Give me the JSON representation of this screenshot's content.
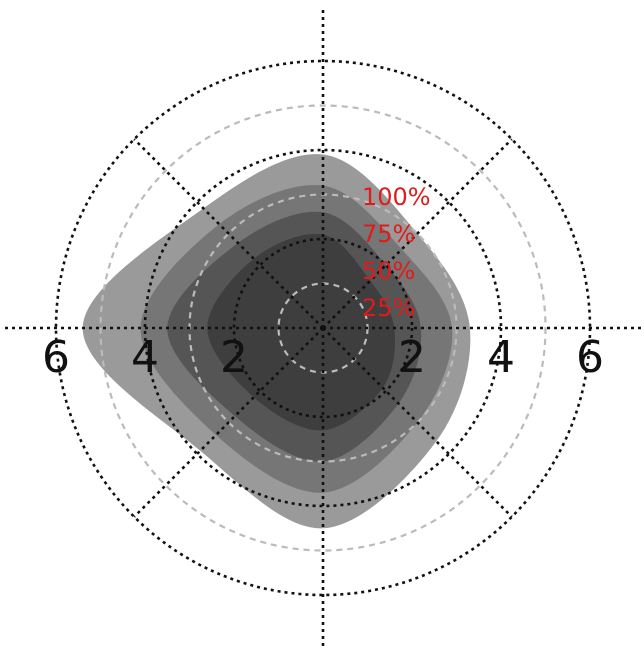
{
  "chart_data": {
    "type": "area",
    "chart_kind": "polar contour (nested percentile regions)",
    "title": "",
    "grid": true,
    "radial_ticks": [
      2,
      4,
      6
    ],
    "radial_range": [
      0,
      7
    ],
    "dashed_rings": [
      1,
      3,
      5
    ],
    "spokes_deg": [
      0,
      45,
      90,
      135,
      180,
      225,
      270,
      315
    ],
    "angles_deg": [
      0,
      45,
      90,
      135,
      180,
      225,
      270,
      315
    ],
    "levels": [
      {
        "label": "100%",
        "color": "#9a9a9a",
        "radii": [
          3.3,
          3.0,
          3.9,
          3.8,
          5.4,
          3.9,
          4.5,
          3.6
        ]
      },
      {
        "label": "75%",
        "color": "#767676",
        "radii": [
          2.9,
          2.5,
          3.2,
          3.3,
          4.1,
          3.4,
          3.7,
          3.0
        ]
      },
      {
        "label": "50%",
        "color": "#555555",
        "radii": [
          2.2,
          2.0,
          2.6,
          2.7,
          3.5,
          2.8,
          3.0,
          2.4
        ]
      },
      {
        "label": "25%",
        "color": "#3d3e3d",
        "radii": [
          1.6,
          1.5,
          2.1,
          2.2,
          2.6,
          2.2,
          2.3,
          1.9
        ]
      }
    ],
    "colors": {
      "ring": "#111111",
      "dashed_ring": "#bbbbbb",
      "label": "#e01b1b"
    }
  }
}
